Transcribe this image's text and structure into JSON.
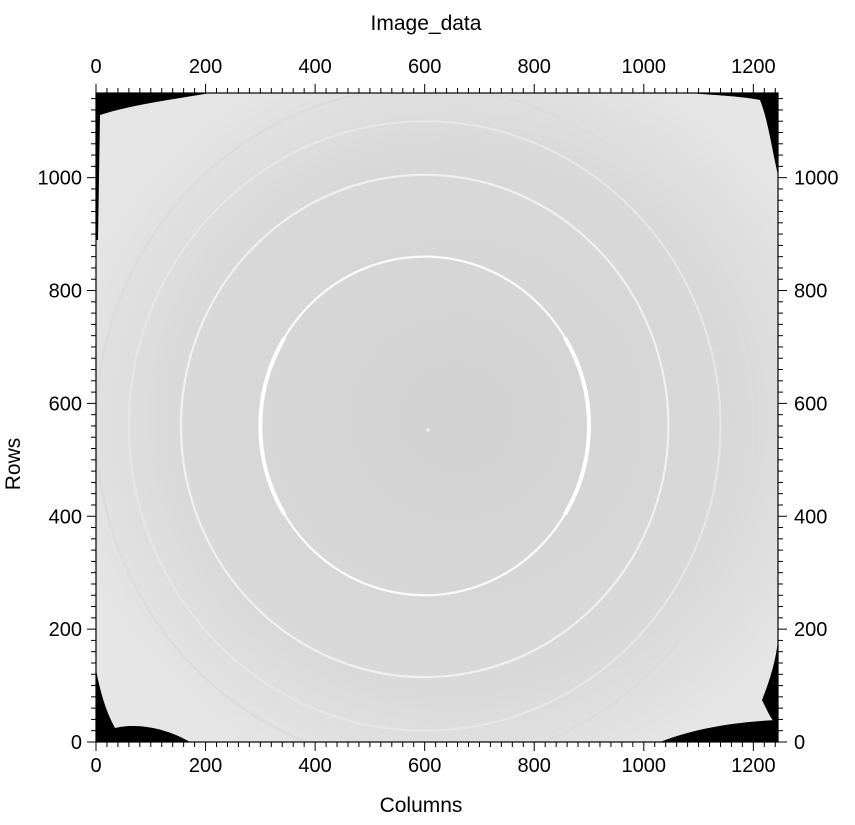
{
  "chart_data": {
    "type": "heatmap",
    "title": "Image_data",
    "xlabel": "Columns",
    "ylabel": "Rows",
    "xlim": [
      0,
      1245
    ],
    "ylim": [
      0,
      1150
    ],
    "x_ticks": [
      0,
      200,
      400,
      600,
      800,
      1000,
      1200
    ],
    "y_ticks": [
      0,
      200,
      400,
      600,
      800,
      1000
    ],
    "x_tick_labels": [
      "0",
      "200",
      "400",
      "600",
      "800",
      "1000",
      "1200"
    ],
    "y_tick_labels": [
      "0",
      "200",
      "400",
      "600",
      "800",
      "1000"
    ],
    "colormap": "grayscale",
    "background_level": 0.82,
    "beam_center": {
      "x": 600,
      "y": 560
    },
    "rings": [
      {
        "radius": 300,
        "intensity": 0.98,
        "note": "bright arcs on left and right sides"
      },
      {
        "radius": 445,
        "intensity": 0.94
      },
      {
        "radius": 540,
        "intensity": 0.9
      },
      {
        "radius": 600,
        "intensity": 0.86
      }
    ],
    "masked_corners": [
      "top-left",
      "top-right",
      "bottom-left",
      "bottom-right"
    ],
    "grid": false,
    "legend": "none"
  }
}
